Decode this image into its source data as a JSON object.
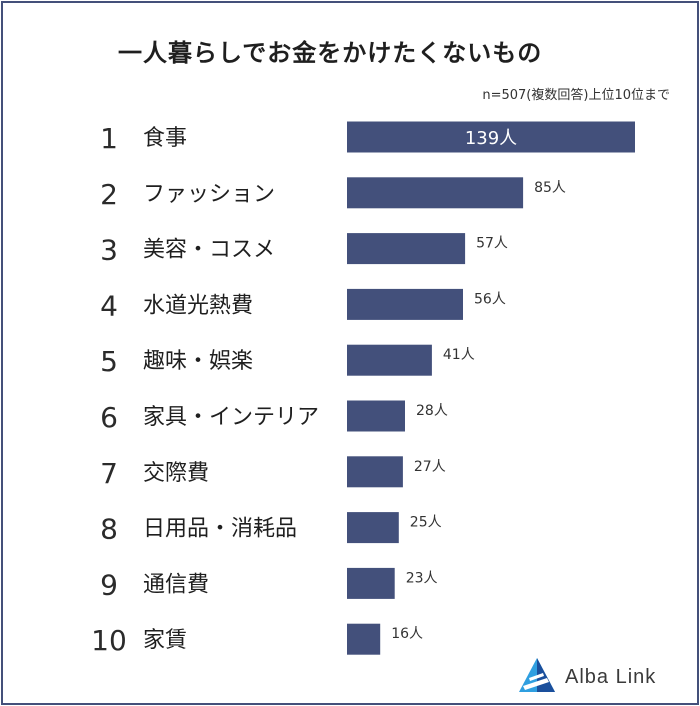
{
  "title": "一人暮らしでお金をかけたくないもの",
  "note": "n=507(複数回答)上位10位まで",
  "brand": {
    "name": "Alba Link",
    "accent": "#2f9fe0",
    "accent_dark": "#1a4f9c"
  },
  "chart_data": {
    "type": "bar",
    "orientation": "horizontal",
    "title": "一人暮らしでお金をかけたくないもの",
    "ranks": [
      "1",
      "2",
      "3",
      "4",
      "5",
      "6",
      "7",
      "8",
      "9",
      "10"
    ],
    "categories": [
      "食事",
      "ファッション",
      "美容・コスメ",
      "水道光熱費",
      "趣味・娯楽",
      "家具・インテリア",
      "交際費",
      "日用品・消耗品",
      "通信費",
      "家賃"
    ],
    "values": [
      139,
      85,
      57,
      56,
      41,
      28,
      27,
      25,
      23,
      16
    ],
    "value_labels": [
      "139人",
      "85人",
      "57人",
      "56人",
      "41人",
      "28人",
      "27人",
      "25人",
      "23人",
      "16人"
    ],
    "xlim": [
      0,
      139
    ],
    "bar_color": "#43507b",
    "grid": false,
    "legend": "none"
  }
}
